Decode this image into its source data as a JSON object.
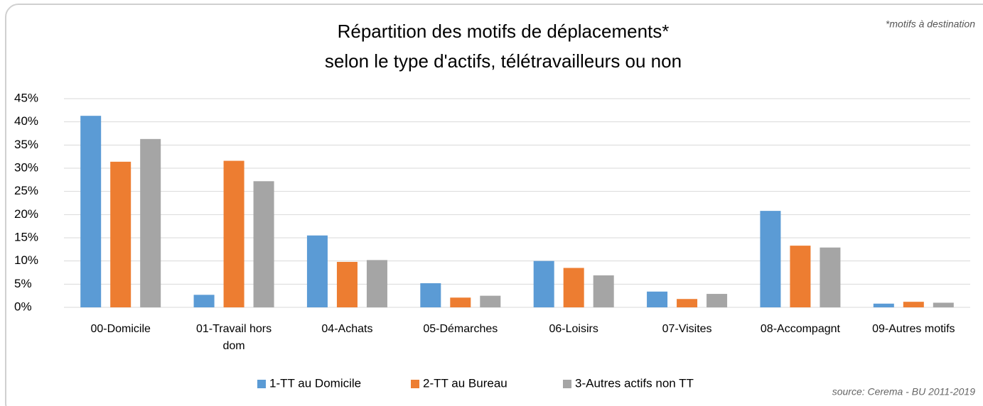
{
  "chart_data": {
    "type": "bar",
    "title": [
      "Répartition des motifs de déplacements*",
      "selon le type d'actifs, télétravailleurs ou non"
    ],
    "annotations": [
      "*motifs à destination",
      "source: Cerema - BU 2011-2019"
    ],
    "categories": [
      "00-Domicile",
      "01-Travail hors dom",
      "04-Achats",
      "05-Démarches",
      "06-Loisirs",
      "07-Visites",
      "08-Accompagnt",
      "09-Autres motifs"
    ],
    "series": [
      {
        "name": "1-TT au Domicile",
        "color": "#5b9bd5",
        "values": [
          41.3,
          2.7,
          15.5,
          5.2,
          10.0,
          3.4,
          20.8,
          0.8
        ]
      },
      {
        "name": "2-TT au Bureau",
        "color": "#ed7d31",
        "values": [
          31.4,
          31.6,
          9.8,
          2.1,
          8.5,
          1.8,
          13.3,
          1.2
        ]
      },
      {
        "name": "3-Autres actifs non TT",
        "color": "#a5a5a5",
        "values": [
          36.3,
          27.2,
          10.2,
          2.5,
          6.9,
          2.9,
          12.9,
          1.0
        ]
      }
    ],
    "ylim": [
      0,
      45
    ],
    "yticks": [
      {
        "value": 0,
        "label": "0%"
      },
      {
        "value": 5,
        "label": "5%"
      },
      {
        "value": 10,
        "label": "10%"
      },
      {
        "value": 15,
        "label": "15%"
      },
      {
        "value": 20,
        "label": "20%"
      },
      {
        "value": 25,
        "label": "25%"
      },
      {
        "value": 30,
        "label": "30%"
      },
      {
        "value": 35,
        "label": "35%"
      },
      {
        "value": 40,
        "label": "40%"
      },
      {
        "value": 45,
        "label": "45%"
      }
    ],
    "grid": true,
    "legend": "bottom"
  }
}
